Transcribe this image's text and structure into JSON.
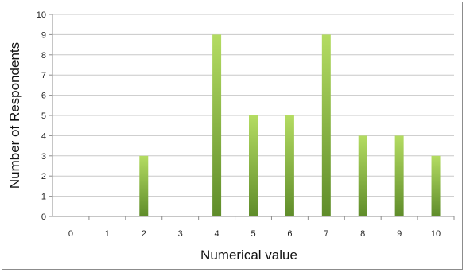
{
  "chart_data": {
    "type": "bar",
    "categories": [
      "0",
      "1",
      "2",
      "3",
      "4",
      "5",
      "6",
      "7",
      "8",
      "9",
      "10"
    ],
    "values": [
      0,
      0,
      3,
      0,
      9,
      5,
      5,
      9,
      4,
      4,
      3
    ],
    "title": "",
    "xlabel": "Numerical value",
    "ylabel": "Number of Respondents",
    "ylim": [
      0,
      10
    ],
    "yticks": [
      "0",
      "1",
      "2",
      "3",
      "4",
      "5",
      "6",
      "7",
      "8",
      "9",
      "10"
    ],
    "grid": true,
    "legend": "none",
    "colors": {
      "bar_light": "#b4dc62",
      "bar_dark": "#5f8c2a",
      "grid": "#c8c8c8",
      "axis": "#8c8c8c"
    }
  }
}
